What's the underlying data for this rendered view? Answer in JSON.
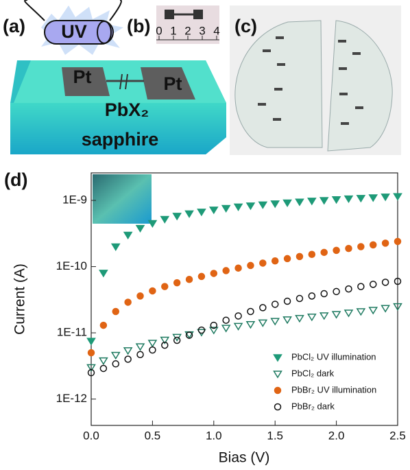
{
  "panel_a": {
    "label": "(a)",
    "lamp": "UV",
    "electrodes": [
      "Pt",
      "Pt"
    ],
    "film": "PbX₂",
    "substrate": "sapphire"
  },
  "panel_b": {
    "label": "(b)",
    "ruler": [
      "0",
      "1",
      "2",
      "3",
      "4"
    ]
  },
  "panel_c": {
    "label": "(c)"
  },
  "panel_d": {
    "label": "(d)"
  },
  "chart_data": {
    "type": "scatter",
    "xlabel": "Bias (V)",
    "ylabel": "Current (A)",
    "log_y": true,
    "legend": "lower right",
    "xlim": [
      0,
      2.5
    ],
    "xticks": [
      {
        "value": 0,
        "label": "0.0"
      },
      0.5,
      {
        "value": 1,
        "label": "1.0"
      },
      1.5,
      {
        "value": 2,
        "label": "2.0"
      },
      2.5
    ],
    "ylim": [
      4e-13,
      2.6e-09
    ],
    "yticks": [
      {
        "value": 1e-12,
        "label": "1E-12"
      },
      {
        "value": 1e-11,
        "label": "1E-11"
      },
      {
        "value": 1e-10,
        "label": "1E-10"
      },
      {
        "value": 1e-09,
        "label": "1E-9"
      }
    ],
    "x": [
      0,
      0.1,
      0.2,
      0.3,
      0.4,
      0.5,
      0.6,
      0.7,
      0.8,
      0.9,
      1.0,
      1.1,
      1.2,
      1.3,
      1.4,
      1.5,
      1.6,
      1.7,
      1.8,
      1.9,
      2.0,
      2.1,
      2.2,
      2.3,
      2.4,
      2.5
    ],
    "series": [
      {
        "name": "PbCl₂ UV illumination",
        "color": "#1e9a78",
        "marker": "triangle-down",
        "filled": true,
        "values": [
          7.5e-12,
          8e-11,
          2e-10,
          3e-10,
          3.8e-10,
          4.5e-10,
          5.2e-10,
          5.8e-10,
          6.3e-10,
          6.7e-10,
          7.2e-10,
          7.6e-10,
          8e-10,
          8.3e-10,
          8.6e-10,
          8.9e-10,
          9.2e-10,
          9.5e-10,
          9.8e-10,
          1e-09,
          1.03e-09,
          1.06e-09,
          1.08e-09,
          1.1e-09,
          1.13e-09,
          1.15e-09
        ]
      },
      {
        "name": "PbCl₂ dark",
        "color": "#1e7a60",
        "marker": "triangle-down",
        "filled": false,
        "values": [
          3e-12,
          3.8e-12,
          4.6e-12,
          5.4e-12,
          6.2e-12,
          7e-12,
          7.8e-12,
          8.6e-12,
          9.4e-12,
          1.02e-11,
          1.1e-11,
          1.18e-11,
          1.26e-11,
          1.34e-11,
          1.42e-11,
          1.5e-11,
          1.58e-11,
          1.66e-11,
          1.74e-11,
          1.82e-11,
          1.9e-11,
          2e-11,
          2.1e-11,
          2.2e-11,
          2.35e-11,
          2.5e-11
        ]
      },
      {
        "name": "PbBr₂ UV illumination",
        "color": "#e06414",
        "marker": "circle",
        "filled": true,
        "values": [
          5e-12,
          1.3e-11,
          2.1e-11,
          2.9e-11,
          3.6e-11,
          4.3e-11,
          5e-11,
          5.7e-11,
          6.4e-11,
          7.1e-11,
          7.9e-11,
          8.7e-11,
          9.5e-11,
          1.04e-10,
          1.13e-10,
          1.22e-10,
          1.32e-10,
          1.42e-10,
          1.53e-10,
          1.64e-10,
          1.76e-10,
          1.88e-10,
          2e-10,
          2.13e-10,
          2.26e-10,
          2.4e-10
        ]
      },
      {
        "name": "PbBr₂ dark",
        "color": "#111111",
        "marker": "circle",
        "filled": false,
        "values": [
          2.5e-12,
          2.9e-12,
          3.4e-12,
          4e-12,
          4.7e-12,
          5.5e-12,
          6.5e-12,
          7.7e-12,
          9.2e-12,
          1.1e-11,
          1.3e-11,
          1.55e-11,
          1.8e-11,
          2.1e-11,
          2.4e-11,
          2.7e-11,
          3e-11,
          3.3e-11,
          3.6e-11,
          3.9e-11,
          4.2e-11,
          4.6e-11,
          5e-11,
          5.4e-11,
          5.8e-11,
          6e-11
        ]
      }
    ]
  }
}
